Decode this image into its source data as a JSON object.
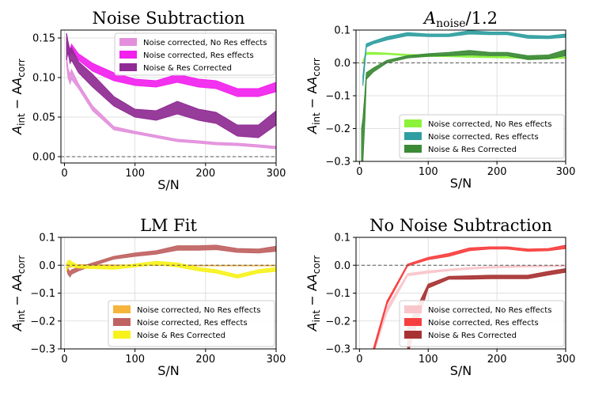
{
  "chart_data": [
    {
      "type": "area",
      "title": "Noise Subtraction",
      "title_main": "Noise Subtraction",
      "title_sub": "",
      "title_suffix": "",
      "xlabel": "S/N",
      "ylabel_main": "A",
      "ylabel_sub1": "int",
      "ylabel_mid": " − A",
      "ylabel_sub2": "corr",
      "xlim": [
        -5,
        300
      ],
      "ylim": [
        -0.008,
        0.16
      ],
      "xticks": [
        0,
        100,
        200,
        300
      ],
      "xtick_labels": [
        "0",
        "100",
        "200",
        "300"
      ],
      "yticks": [
        0,
        0.05,
        0.1,
        0.15
      ],
      "ytick_labels": [
        "0.00",
        "0.05",
        "0.10",
        "0.15"
      ],
      "hline": 0,
      "legend_position": "top-right",
      "series": [
        {
          "name": "Noise corrected, No Res effects",
          "color": "#e38fdc",
          "x": [
            3,
            5,
            8,
            10,
            20,
            40,
            70,
            100,
            130,
            160,
            190,
            215,
            245,
            275,
            300
          ],
          "lower": [
            0.118,
            0.1,
            0.092,
            0.098,
            0.086,
            0.058,
            0.034,
            0.029,
            0.024,
            0.019,
            0.017,
            0.015,
            0.014,
            0.012,
            0.01
          ],
          "upper": [
            0.128,
            0.112,
            0.104,
            0.11,
            0.092,
            0.064,
            0.038,
            0.032,
            0.027,
            0.022,
            0.02,
            0.018,
            0.017,
            0.015,
            0.013
          ]
        },
        {
          "name": "Noise corrected, Res effects",
          "color": "#f221ee",
          "x": [
            3,
            5,
            8,
            10,
            20,
            40,
            70,
            100,
            130,
            160,
            190,
            215,
            245,
            275,
            300
          ],
          "lower": [
            0.135,
            0.13,
            0.128,
            0.132,
            0.122,
            0.108,
            0.096,
            0.09,
            0.088,
            0.094,
            0.088,
            0.086,
            0.076,
            0.076,
            0.082
          ],
          "upper": [
            0.146,
            0.14,
            0.136,
            0.142,
            0.13,
            0.118,
            0.106,
            0.098,
            0.096,
            0.104,
            0.098,
            0.096,
            0.086,
            0.086,
            0.094
          ]
        },
        {
          "name": "Noise & Res Corrected",
          "color": "#8f2b94",
          "x": [
            3,
            5,
            8,
            10,
            20,
            40,
            70,
            100,
            130,
            160,
            190,
            215,
            245,
            275,
            300
          ],
          "lower": [
            0.122,
            0.132,
            0.118,
            0.122,
            0.106,
            0.088,
            0.064,
            0.05,
            0.046,
            0.054,
            0.046,
            0.042,
            0.026,
            0.024,
            0.04
          ],
          "upper": [
            0.156,
            0.146,
            0.134,
            0.138,
            0.12,
            0.104,
            0.076,
            0.06,
            0.058,
            0.07,
            0.06,
            0.056,
            0.04,
            0.04,
            0.058
          ]
        }
      ]
    },
    {
      "type": "area",
      "title": "A_noise/1.2",
      "title_main": "A",
      "title_sub": "noise",
      "title_suffix": "/1.2",
      "xlabel": "S/N",
      "ylabel_main": "A",
      "ylabel_sub1": "int",
      "ylabel_mid": " − A",
      "ylabel_sub2": "corr",
      "xlim": [
        -5,
        300
      ],
      "ylim": [
        -0.3,
        0.1
      ],
      "xticks": [
        0,
        100,
        200,
        300
      ],
      "xtick_labels": [
        "0",
        "100",
        "200",
        "300"
      ],
      "yticks": [
        -0.3,
        -0.2,
        -0.1,
        0,
        0.1
      ],
      "ytick_labels": [
        "−0.3",
        "−0.2",
        "−0.1",
        "0.0",
        "0.1"
      ],
      "hline": 0,
      "legend_position": "bottom-right",
      "series": [
        {
          "name": "Noise corrected, No Res effects",
          "color": "#8cf23a",
          "x": [
            5,
            10,
            20,
            40,
            70,
            100,
            130,
            160,
            190,
            215,
            245,
            275,
            300
          ],
          "lower": [
            0.0,
            0.026,
            0.026,
            0.026,
            0.022,
            0.02,
            0.019,
            0.017,
            0.016,
            0.015,
            0.013,
            0.013,
            0.014
          ],
          "upper": [
            0.005,
            0.032,
            0.032,
            0.03,
            0.026,
            0.024,
            0.023,
            0.021,
            0.02,
            0.019,
            0.017,
            0.017,
            0.018
          ]
        },
        {
          "name": "Noise corrected, Res effects",
          "color": "#2f9ea0",
          "x": [
            5,
            10,
            20,
            40,
            70,
            100,
            130,
            160,
            190,
            215,
            245,
            275,
            300
          ],
          "lower": [
            -0.07,
            0.048,
            0.058,
            0.07,
            0.083,
            0.08,
            0.08,
            0.088,
            0.086,
            0.086,
            0.075,
            0.074,
            0.078
          ],
          "upper": [
            -0.04,
            0.058,
            0.066,
            0.08,
            0.092,
            0.088,
            0.088,
            0.098,
            0.094,
            0.094,
            0.084,
            0.082,
            0.088
          ]
        },
        {
          "name": "Noise & Res Corrected",
          "color": "#3b8a36",
          "x": [
            3,
            5,
            8,
            10,
            20,
            40,
            70,
            100,
            130,
            160,
            190,
            215,
            245,
            275,
            300
          ],
          "lower": [
            -0.3,
            -0.3,
            -0.17,
            -0.05,
            -0.028,
            0.0,
            0.015,
            0.02,
            0.022,
            0.024,
            0.022,
            0.022,
            0.01,
            0.012,
            0.022
          ],
          "upper": [
            -0.2,
            -0.17,
            -0.09,
            -0.03,
            -0.016,
            0.008,
            0.022,
            0.028,
            0.032,
            0.038,
            0.032,
            0.032,
            0.022,
            0.024,
            0.04
          ]
        }
      ]
    },
    {
      "type": "area",
      "title": "LM Fit",
      "title_main": "LM Fit",
      "title_sub": "",
      "title_suffix": "",
      "xlabel": "S/N",
      "ylabel_main": "A",
      "ylabel_sub1": "int",
      "ylabel_mid": " − A",
      "ylabel_sub2": "corr",
      "xlim": [
        -5,
        300
      ],
      "ylim": [
        -0.3,
        0.1
      ],
      "xticks": [
        0,
        100,
        200,
        300
      ],
      "xtick_labels": [
        "0",
        "100",
        "200",
        "300"
      ],
      "yticks": [
        -0.3,
        -0.2,
        -0.1,
        0,
        0.1
      ],
      "ytick_labels": [
        "−0.3",
        "−0.2",
        "−0.1",
        "0.0",
        "0.1"
      ],
      "hline": 0,
      "legend_position": "bottom-right",
      "series": [
        {
          "name": "Noise corrected, No Res effects",
          "color": "#f5b53b",
          "x": [
            3,
            5,
            8,
            10,
            20,
            40,
            70,
            100,
            130,
            160,
            190,
            215,
            245,
            275,
            300
          ],
          "lower": [
            -0.006,
            -0.008,
            -0.006,
            -0.006,
            -0.004,
            -0.002,
            -0.002,
            -0.001,
            -0.001,
            -0.001,
            -0.002,
            -0.002,
            -0.002,
            -0.002,
            -0.002
          ],
          "upper": [
            0.004,
            0.002,
            0.004,
            0.003,
            0.002,
            0.002,
            0.001,
            0.001,
            0.001,
            0.001,
            0.0,
            0.0,
            0.0,
            0.0,
            0.0
          ]
        },
        {
          "name": "Noise corrected, Res effects",
          "color": "#c06262",
          "x": [
            3,
            5,
            8,
            10,
            20,
            40,
            70,
            100,
            130,
            160,
            190,
            215,
            245,
            275,
            300
          ],
          "lower": [
            -0.01,
            -0.032,
            -0.042,
            -0.032,
            -0.02,
            -0.002,
            0.022,
            0.032,
            0.04,
            0.054,
            0.054,
            0.056,
            0.046,
            0.044,
            0.05
          ],
          "upper": [
            0.005,
            -0.012,
            -0.024,
            -0.016,
            -0.008,
            0.008,
            0.032,
            0.044,
            0.052,
            0.07,
            0.07,
            0.072,
            0.06,
            0.058,
            0.068
          ]
        },
        {
          "name": "Noise & Res Corrected",
          "color": "#f7f21c",
          "x": [
            3,
            5,
            8,
            10,
            20,
            40,
            70,
            100,
            130,
            160,
            190,
            215,
            245,
            275,
            300
          ],
          "lower": [
            -0.022,
            -0.002,
            0.0,
            -0.005,
            -0.01,
            -0.012,
            -0.014,
            -0.006,
            0.002,
            -0.006,
            -0.02,
            -0.028,
            -0.046,
            -0.028,
            -0.022
          ],
          "upper": [
            0.002,
            0.016,
            0.018,
            0.012,
            0.0,
            -0.002,
            -0.004,
            0.004,
            0.014,
            0.008,
            -0.008,
            -0.016,
            -0.034,
            -0.016,
            -0.008
          ]
        }
      ]
    },
    {
      "type": "area",
      "title": "No Noise Subtraction",
      "title_main": "No Noise Subtraction",
      "title_sub": "",
      "title_suffix": "",
      "xlabel": "S/N",
      "ylabel_main": "A",
      "ylabel_sub1": "int",
      "ylabel_mid": " − A",
      "ylabel_sub2": "corr",
      "xlim": [
        -5,
        300
      ],
      "ylim": [
        -0.3,
        0.1
      ],
      "xticks": [
        0,
        100,
        200,
        300
      ],
      "xtick_labels": [
        "0",
        "100",
        "200",
        "300"
      ],
      "yticks": [
        -0.3,
        -0.2,
        -0.1,
        0,
        0.1
      ],
      "ytick_labels": [
        "−0.3",
        "−0.2",
        "−0.1",
        "0.0",
        "0.1"
      ],
      "hline": 0,
      "legend_position": "bottom-right",
      "series": [
        {
          "name": "Noise corrected, No Res effects",
          "color": "#f9c6cb",
          "x": [
            20,
            40,
            70,
            100,
            130,
            160,
            190,
            215,
            245,
            275,
            300
          ],
          "lower": [
            -0.32,
            -0.17,
            -0.038,
            -0.028,
            -0.02,
            -0.014,
            -0.01,
            -0.008,
            -0.006,
            -0.005,
            -0.004
          ],
          "upper": [
            -0.3,
            -0.15,
            -0.03,
            -0.02,
            -0.014,
            -0.008,
            -0.005,
            -0.003,
            -0.002,
            -0.001,
            0.0
          ]
        },
        {
          "name": "Noise corrected, Res effects",
          "color": "#f73f3f",
          "x": [
            20,
            40,
            70,
            100,
            130,
            160,
            190,
            215,
            245,
            275,
            300
          ],
          "lower": [
            -0.32,
            -0.14,
            -0.003,
            0.02,
            0.032,
            0.052,
            0.058,
            0.058,
            0.05,
            0.052,
            0.06
          ],
          "upper": [
            -0.3,
            -0.128,
            0.004,
            0.028,
            0.042,
            0.062,
            0.066,
            0.066,
            0.058,
            0.06,
            0.072
          ]
        },
        {
          "name": "Noise & Res Corrected",
          "color": "#a83232",
          "x": [
            70,
            100,
            130,
            160,
            190,
            215,
            245,
            275,
            300
          ],
          "lower": [
            -0.32,
            -0.082,
            -0.05,
            -0.05,
            -0.048,
            -0.048,
            -0.048,
            -0.035,
            -0.025
          ],
          "upper": [
            -0.22,
            -0.068,
            -0.04,
            -0.038,
            -0.036,
            -0.036,
            -0.036,
            -0.022,
            -0.012
          ]
        }
      ]
    }
  ]
}
